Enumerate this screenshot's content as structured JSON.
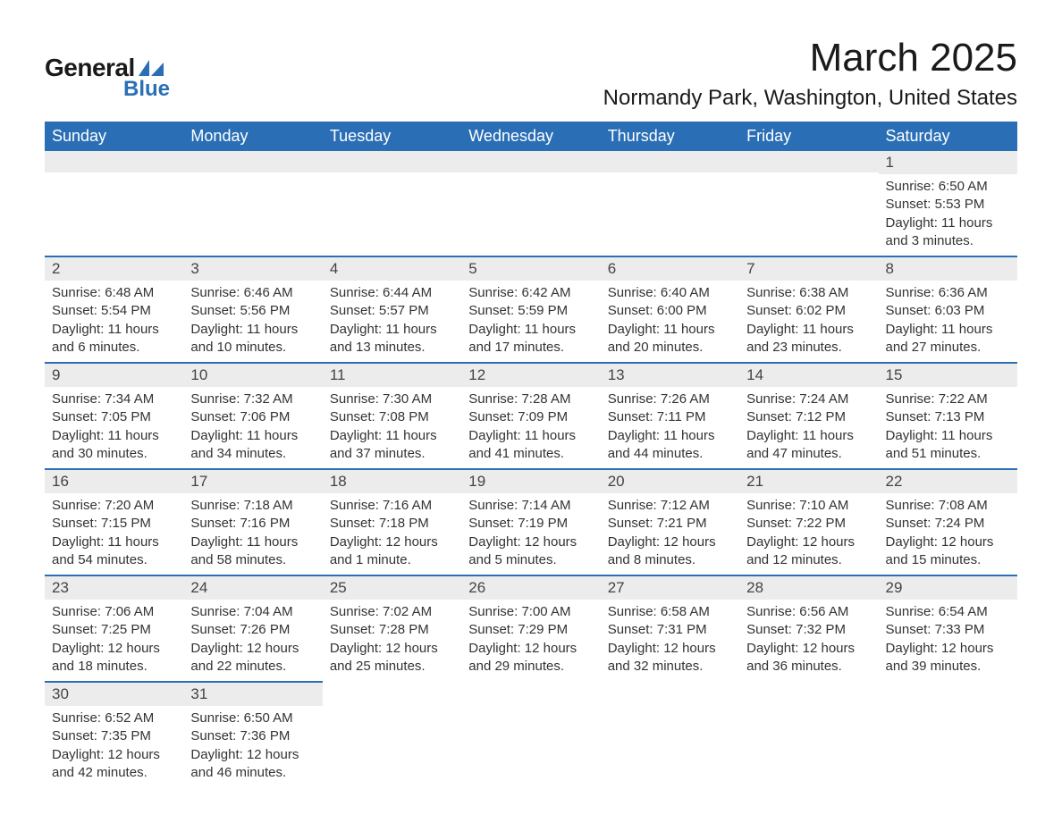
{
  "brand": {
    "word1": "General",
    "word2": "Blue",
    "accent_color": "#2a6fb5"
  },
  "title": "March 2025",
  "location": "Normandy Park, Washington, United States",
  "columns": [
    "Sunday",
    "Monday",
    "Tuesday",
    "Wednesday",
    "Thursday",
    "Friday",
    "Saturday"
  ],
  "colors": {
    "header_bg": "#2a6fb5",
    "header_text": "#ffffff",
    "daynum_bg": "#ececec",
    "row_border": "#2a6fb5",
    "text": "#333333",
    "background": "#ffffff"
  },
  "fonts": {
    "title_size": 44,
    "location_size": 24,
    "th_size": 18,
    "cell_size": 15,
    "daynum_size": 17
  },
  "weeks": [
    [
      null,
      null,
      null,
      null,
      null,
      null,
      {
        "n": 1,
        "sunrise": "6:50 AM",
        "sunset": "5:53 PM",
        "daylight": "11 hours and 3 minutes."
      }
    ],
    [
      {
        "n": 2,
        "sunrise": "6:48 AM",
        "sunset": "5:54 PM",
        "daylight": "11 hours and 6 minutes."
      },
      {
        "n": 3,
        "sunrise": "6:46 AM",
        "sunset": "5:56 PM",
        "daylight": "11 hours and 10 minutes."
      },
      {
        "n": 4,
        "sunrise": "6:44 AM",
        "sunset": "5:57 PM",
        "daylight": "11 hours and 13 minutes."
      },
      {
        "n": 5,
        "sunrise": "6:42 AM",
        "sunset": "5:59 PM",
        "daylight": "11 hours and 17 minutes."
      },
      {
        "n": 6,
        "sunrise": "6:40 AM",
        "sunset": "6:00 PM",
        "daylight": "11 hours and 20 minutes."
      },
      {
        "n": 7,
        "sunrise": "6:38 AM",
        "sunset": "6:02 PM",
        "daylight": "11 hours and 23 minutes."
      },
      {
        "n": 8,
        "sunrise": "6:36 AM",
        "sunset": "6:03 PM",
        "daylight": "11 hours and 27 minutes."
      }
    ],
    [
      {
        "n": 9,
        "sunrise": "7:34 AM",
        "sunset": "7:05 PM",
        "daylight": "11 hours and 30 minutes."
      },
      {
        "n": 10,
        "sunrise": "7:32 AM",
        "sunset": "7:06 PM",
        "daylight": "11 hours and 34 minutes."
      },
      {
        "n": 11,
        "sunrise": "7:30 AM",
        "sunset": "7:08 PM",
        "daylight": "11 hours and 37 minutes."
      },
      {
        "n": 12,
        "sunrise": "7:28 AM",
        "sunset": "7:09 PM",
        "daylight": "11 hours and 41 minutes."
      },
      {
        "n": 13,
        "sunrise": "7:26 AM",
        "sunset": "7:11 PM",
        "daylight": "11 hours and 44 minutes."
      },
      {
        "n": 14,
        "sunrise": "7:24 AM",
        "sunset": "7:12 PM",
        "daylight": "11 hours and 47 minutes."
      },
      {
        "n": 15,
        "sunrise": "7:22 AM",
        "sunset": "7:13 PM",
        "daylight": "11 hours and 51 minutes."
      }
    ],
    [
      {
        "n": 16,
        "sunrise": "7:20 AM",
        "sunset": "7:15 PM",
        "daylight": "11 hours and 54 minutes."
      },
      {
        "n": 17,
        "sunrise": "7:18 AM",
        "sunset": "7:16 PM",
        "daylight": "11 hours and 58 minutes."
      },
      {
        "n": 18,
        "sunrise": "7:16 AM",
        "sunset": "7:18 PM",
        "daylight": "12 hours and 1 minute."
      },
      {
        "n": 19,
        "sunrise": "7:14 AM",
        "sunset": "7:19 PM",
        "daylight": "12 hours and 5 minutes."
      },
      {
        "n": 20,
        "sunrise": "7:12 AM",
        "sunset": "7:21 PM",
        "daylight": "12 hours and 8 minutes."
      },
      {
        "n": 21,
        "sunrise": "7:10 AM",
        "sunset": "7:22 PM",
        "daylight": "12 hours and 12 minutes."
      },
      {
        "n": 22,
        "sunrise": "7:08 AM",
        "sunset": "7:24 PM",
        "daylight": "12 hours and 15 minutes."
      }
    ],
    [
      {
        "n": 23,
        "sunrise": "7:06 AM",
        "sunset": "7:25 PM",
        "daylight": "12 hours and 18 minutes."
      },
      {
        "n": 24,
        "sunrise": "7:04 AM",
        "sunset": "7:26 PM",
        "daylight": "12 hours and 22 minutes."
      },
      {
        "n": 25,
        "sunrise": "7:02 AM",
        "sunset": "7:28 PM",
        "daylight": "12 hours and 25 minutes."
      },
      {
        "n": 26,
        "sunrise": "7:00 AM",
        "sunset": "7:29 PM",
        "daylight": "12 hours and 29 minutes."
      },
      {
        "n": 27,
        "sunrise": "6:58 AM",
        "sunset": "7:31 PM",
        "daylight": "12 hours and 32 minutes."
      },
      {
        "n": 28,
        "sunrise": "6:56 AM",
        "sunset": "7:32 PM",
        "daylight": "12 hours and 36 minutes."
      },
      {
        "n": 29,
        "sunrise": "6:54 AM",
        "sunset": "7:33 PM",
        "daylight": "12 hours and 39 minutes."
      }
    ],
    [
      {
        "n": 30,
        "sunrise": "6:52 AM",
        "sunset": "7:35 PM",
        "daylight": "12 hours and 42 minutes."
      },
      {
        "n": 31,
        "sunrise": "6:50 AM",
        "sunset": "7:36 PM",
        "daylight": "12 hours and 46 minutes."
      },
      null,
      null,
      null,
      null,
      null
    ]
  ],
  "labels": {
    "sunrise": "Sunrise: ",
    "sunset": "Sunset: ",
    "daylight": "Daylight: "
  }
}
